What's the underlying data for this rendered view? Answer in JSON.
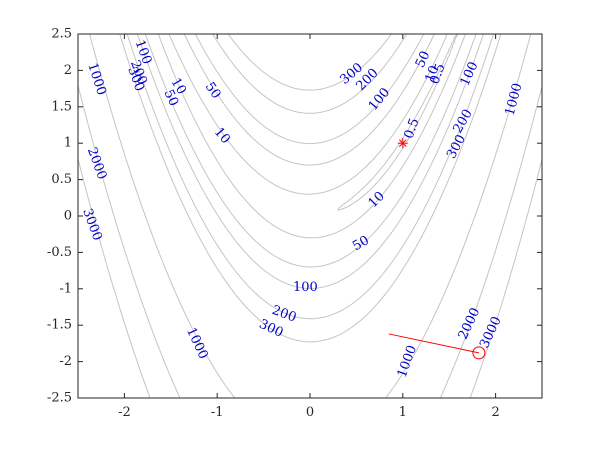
{
  "chart_data": {
    "type": "contour",
    "function": "100*(y - x^2)^2 + (1 - x)^2",
    "xlim": [
      -2.5,
      2.5
    ],
    "ylim": [
      -2.5,
      2.5
    ],
    "x_ticks": [
      -2,
      -1,
      0,
      1,
      2
    ],
    "y_ticks": [
      -2.5,
      -2,
      -1.5,
      -1,
      -0.5,
      0,
      0.5,
      1,
      1.5,
      2,
      2.5
    ],
    "x_tick_labels": [
      "-2",
      "-1",
      "0",
      "1",
      "2"
    ],
    "y_tick_labels": [
      "-2.5",
      "-2",
      "-1.5",
      "-1",
      "-0.5",
      "0",
      "0.5",
      "1",
      "1.5",
      "2",
      "2.5"
    ],
    "contour_levels": [
      0.5,
      10,
      50,
      100,
      200,
      300,
      1000,
      2000,
      3000
    ],
    "contour_labels": [
      {
        "text": "0.5",
        "x": 1.1,
        "y": 1.2,
        "angle": -70
      },
      {
        "text": "0.5",
        "x": 1.38,
        "y": 1.95,
        "angle": -70
      },
      {
        "text": "10",
        "x": 0.72,
        "y": 0.22,
        "angle": -45
      },
      {
        "text": "10",
        "x": -0.95,
        "y": 1.1,
        "angle": 50
      },
      {
        "text": "10",
        "x": -1.42,
        "y": 1.78,
        "angle": 60
      },
      {
        "text": "10",
        "x": 1.32,
        "y": 1.95,
        "angle": -70
      },
      {
        "text": "50",
        "x": 0.55,
        "y": -0.38,
        "angle": -30
      },
      {
        "text": "50",
        "x": -1.05,
        "y": 1.72,
        "angle": 55
      },
      {
        "text": "50",
        "x": -1.5,
        "y": 1.62,
        "angle": 65
      },
      {
        "text": "50",
        "x": 1.22,
        "y": 2.15,
        "angle": -65
      },
      {
        "text": "100",
        "x": -0.05,
        "y": -0.98,
        "angle": 0
      },
      {
        "text": "100",
        "x": 0.75,
        "y": 1.6,
        "angle": -50
      },
      {
        "text": "100",
        "x": 1.72,
        "y": 1.95,
        "angle": -65
      },
      {
        "text": "100",
        "x": -1.8,
        "y": 2.25,
        "angle": 70
      },
      {
        "text": "200",
        "x": -0.28,
        "y": -1.35,
        "angle": 20
      },
      {
        "text": "200",
        "x": 0.62,
        "y": 1.87,
        "angle": -45
      },
      {
        "text": "200",
        "x": 1.65,
        "y": 1.3,
        "angle": -60
      },
      {
        "text": "200",
        "x": -1.85,
        "y": 1.97,
        "angle": 70
      },
      {
        "text": "300",
        "x": -0.42,
        "y": -1.55,
        "angle": 25
      },
      {
        "text": "300",
        "x": 0.45,
        "y": 1.95,
        "angle": -40
      },
      {
        "text": "300",
        "x": 1.58,
        "y": 0.95,
        "angle": -62
      },
      {
        "text": "300",
        "x": -1.88,
        "y": 1.88,
        "angle": 70
      },
      {
        "text": "1000",
        "x": -2.3,
        "y": 1.88,
        "angle": 72
      },
      {
        "text": "1000",
        "x": -1.22,
        "y": -1.75,
        "angle": 65
      },
      {
        "text": "1000",
        "x": 1.05,
        "y": -2.0,
        "angle": -70
      },
      {
        "text": "1000",
        "x": 2.2,
        "y": 1.6,
        "angle": -75
      },
      {
        "text": "2000",
        "x": -2.3,
        "y": 0.72,
        "angle": 70
      },
      {
        "text": "2000",
        "x": 1.72,
        "y": -1.48,
        "angle": -65
      },
      {
        "text": "3000",
        "x": -2.35,
        "y": -0.12,
        "angle": 70
      },
      {
        "text": "3000",
        "x": 1.95,
        "y": -1.6,
        "angle": -65
      }
    ],
    "minimum_marker": {
      "x": 1.0,
      "y": 1.0,
      "symbol": "*"
    },
    "start_marker": {
      "x": 1.82,
      "y": -1.88,
      "symbol": "o"
    },
    "path_line": [
      {
        "x": 0.85,
        "y": -1.62
      },
      {
        "x": 1.82,
        "y": -1.88
      }
    ],
    "marker_color": "#ff0000",
    "contour_color": "#c4c4c4",
    "label_color": "#0000c8",
    "grid": false
  }
}
